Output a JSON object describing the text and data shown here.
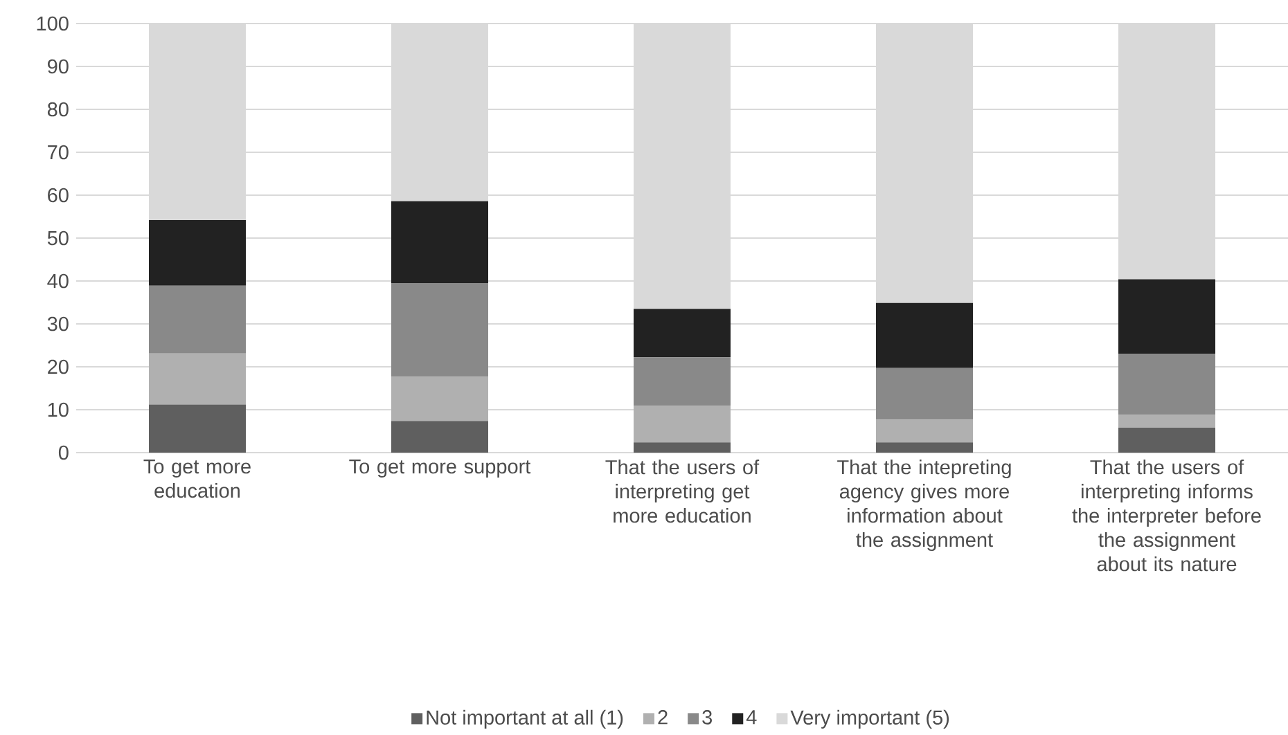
{
  "chart_data": {
    "type": "bar",
    "stacked": true,
    "categories": [
      "To get more education",
      "To get more support",
      "That the users of interpreting get more education",
      "That the intepreting agency gives more information about the assignment",
      "That the users of interpreting informs the interpreter before the assignment about its nature"
    ],
    "series": [
      {
        "name": "Not important at all (1)",
        "color": "#5f5f5f",
        "values": [
          11.2,
          7.4,
          2.4,
          2.4,
          5.8
        ]
      },
      {
        "name": "2",
        "color": "#b0b0b0",
        "values": [
          11.9,
          10.3,
          8.5,
          5.3,
          3.0
        ]
      },
      {
        "name": "3",
        "color": "#898989",
        "values": [
          15.8,
          21.8,
          11.3,
          12.0,
          14.2
        ]
      },
      {
        "name": "4",
        "color": "#222222",
        "values": [
          15.3,
          19.1,
          11.3,
          15.2,
          17.4
        ]
      },
      {
        "name": "Very important (5)",
        "color": "#d9d9d9",
        "values": [
          45.8,
          41.4,
          66.5,
          65.1,
          59.6
        ]
      }
    ],
    "ylim": [
      0,
      100
    ],
    "yticks": [
      0,
      10,
      20,
      30,
      40,
      50,
      60,
      70,
      80,
      90,
      100
    ],
    "grid": "y",
    "legend": "bottom"
  }
}
